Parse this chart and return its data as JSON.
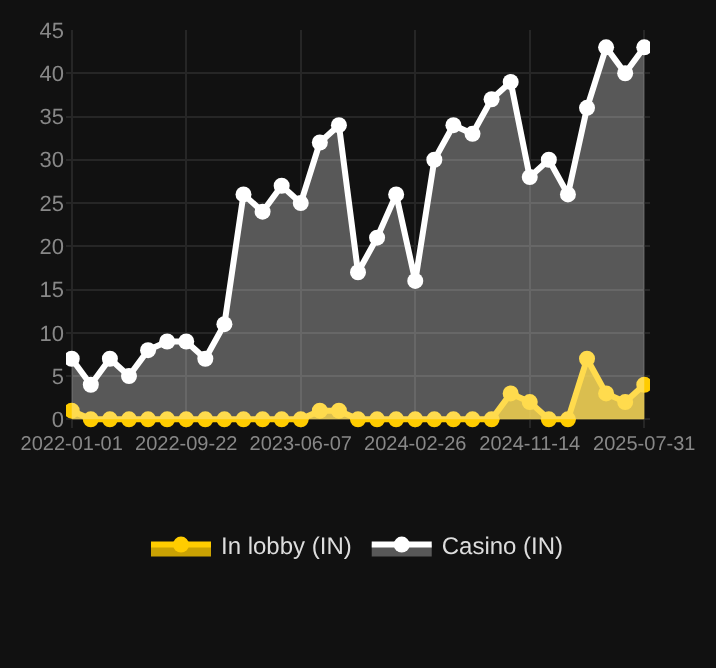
{
  "chart_data": {
    "type": "area",
    "categories": [
      "2022-01-01",
      null,
      null,
      null,
      null,
      null,
      "2022-09-22",
      null,
      null,
      null,
      null,
      null,
      "2023-06-07",
      null,
      null,
      null,
      null,
      null,
      "2024-02-26",
      null,
      null,
      null,
      null,
      null,
      "2024-11-14",
      null,
      null,
      null,
      null,
      null,
      "2025-07-31"
    ],
    "series": [
      {
        "name": "In lobby (IN)",
        "color": "#ffcc00",
        "values": [
          1,
          0,
          0,
          0,
          0,
          0,
          0,
          0,
          0,
          0,
          0,
          0,
          0,
          1,
          1,
          0,
          0,
          0,
          0,
          0,
          0,
          0,
          0,
          3,
          2,
          0,
          0,
          7,
          3,
          2,
          4
        ]
      },
      {
        "name": "Casino (IN)",
        "color": "#ffffff",
        "values": [
          7,
          4,
          7,
          5,
          8,
          9,
          9,
          7,
          11,
          26,
          24,
          27,
          25,
          32,
          34,
          17,
          21,
          26,
          16,
          30,
          34,
          33,
          37,
          39,
          28,
          30,
          26,
          36,
          43,
          40,
          43
        ]
      }
    ],
    "ylim": [
      -1,
      45
    ],
    "yticks": [
      0,
      5,
      10,
      15,
      20,
      25,
      30,
      35,
      40,
      45
    ],
    "grid": true,
    "legend": "bottom",
    "marker": "circle",
    "line_style": "solid"
  }
}
